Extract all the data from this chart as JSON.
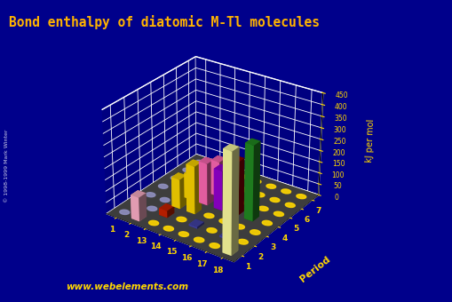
{
  "title": "Bond enthalpy of diatomic M-Tl molecules",
  "title_color": "#FFB300",
  "background_color": "#00008B",
  "floor_color": "#505050",
  "ylabel": "Period",
  "zlabel": "kJ per mol",
  "groups": [
    1,
    2,
    13,
    14,
    15,
    16,
    17,
    18
  ],
  "periods": [
    1,
    2,
    3,
    4,
    5,
    6,
    7
  ],
  "zlim": [
    0,
    450
  ],
  "zticks": [
    0,
    50,
    100,
    150,
    200,
    250,
    300,
    350,
    400,
    450
  ],
  "website": "www.webelements.com",
  "dot_color_s": "#9090C0",
  "dot_color_p": "#FFD700",
  "bar_data": [
    {
      "group": 2,
      "period": 1,
      "value": 105,
      "color": "#FFB0C8"
    },
    {
      "group": 13,
      "period": 2,
      "value": 30,
      "color": "#CC2200"
    },
    {
      "group": 13,
      "period": 3,
      "value": 130,
      "color": "#FFD700"
    },
    {
      "group": 13,
      "period": 4,
      "value": 110,
      "color": "#FFD700"
    },
    {
      "group": 13,
      "period": 5,
      "value": 90,
      "color": "#FFD700"
    },
    {
      "group": 13,
      "period": 6,
      "value": 70,
      "color": "#FFD700"
    },
    {
      "group": 13,
      "period": 7,
      "value": 55,
      "color": "#FFD700"
    },
    {
      "group": 14,
      "period": 3,
      "value": 210,
      "color": "#FFD700"
    },
    {
      "group": 14,
      "period": 4,
      "value": 185,
      "color": "#FF69B4"
    },
    {
      "group": 14,
      "period": 5,
      "value": 155,
      "color": "#FF69B4"
    },
    {
      "group": 14,
      "period": 6,
      "value": 130,
      "color": "#FF69B4"
    },
    {
      "group": 15,
      "period": 2,
      "value": 8,
      "color": "#4444AA"
    },
    {
      "group": 15,
      "period": 4,
      "value": 175,
      "color": "#9400D3"
    },
    {
      "group": 15,
      "period": 5,
      "value": 150,
      "color": "#9400D3"
    },
    {
      "group": 16,
      "period": 4,
      "value": 235,
      "color": "#8B0000"
    },
    {
      "group": 17,
      "period": 2,
      "value": 8,
      "color": "#4444AA"
    },
    {
      "group": 17,
      "period": 4,
      "value": 330,
      "color": "#228B22"
    },
    {
      "group": 18,
      "period": 1,
      "value": 435,
      "color": "#FFFFA0"
    }
  ]
}
